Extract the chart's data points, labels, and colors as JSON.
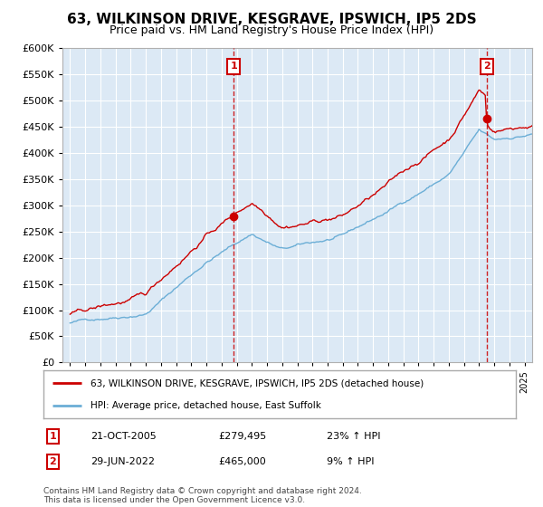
{
  "title": "63, WILKINSON DRIVE, KESGRAVE, IPSWICH, IP5 2DS",
  "subtitle": "Price paid vs. HM Land Registry's House Price Index (HPI)",
  "hpi_label": "HPI: Average price, detached house, East Suffolk",
  "price_label": "63, WILKINSON DRIVE, KESGRAVE, IPSWICH, IP5 2DS (detached house)",
  "footnote": "Contains HM Land Registry data © Crown copyright and database right 2024.\nThis data is licensed under the Open Government Licence v3.0.",
  "sale1_date": "21-OCT-2005",
  "sale1_price": 279495,
  "sale1_pct": "23% ↑ HPI",
  "sale1_label": "1",
  "sale1_year": 2005.8,
  "sale1_value": 279495,
  "sale2_date": "29-JUN-2022",
  "sale2_price": 465000,
  "sale2_pct": "9% ↑ HPI",
  "sale2_label": "2",
  "sale2_year": 2022.5,
  "sale2_value": 465000,
  "ylim": [
    0,
    600000
  ],
  "yticks": [
    0,
    50000,
    100000,
    150000,
    200000,
    250000,
    300000,
    350000,
    400000,
    450000,
    500000,
    550000,
    600000
  ],
  "bg_color": "#dce9f5",
  "hpi_color": "#6baed6",
  "price_color": "#cc0000",
  "vline_color": "#cc0000",
  "box_color": "#cc0000",
  "grid_color": "#ffffff",
  "title_fontsize": 11,
  "subtitle_fontsize": 9
}
